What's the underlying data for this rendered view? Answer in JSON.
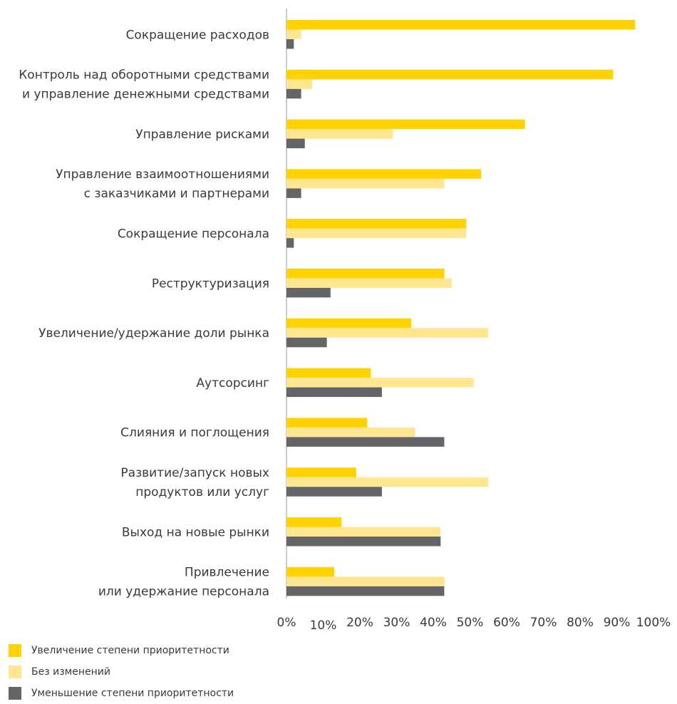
{
  "chart_data": {
    "type": "bar",
    "orientation": "horizontal",
    "categories": [
      [
        "Сокращение расходов"
      ],
      [
        "Контроль над оборотными средствами",
        "и управление денежными средствами"
      ],
      [
        "Управление рисками"
      ],
      [
        "Управление взаимоотношениями",
        "с заказчиками и партнерами"
      ],
      [
        "Сокращение персонала"
      ],
      [
        "Реструктуризация"
      ],
      [
        "Увеличение/удержание доли рынка"
      ],
      [
        "Аутсорсинг"
      ],
      [
        "Слияния и поглощения"
      ],
      [
        "Развитие/запуск новых",
        "продуктов или услуг"
      ],
      [
        "Выход на новые рынки"
      ],
      [
        "Привлечение",
        "или удержание персонала"
      ]
    ],
    "series": [
      {
        "name": "Увеличение степени приоритетности",
        "color": "#FFD200",
        "values": [
          95,
          89,
          65,
          53,
          49,
          43,
          34,
          23,
          22,
          19,
          15,
          13
        ]
      },
      {
        "name": "Без изменений",
        "color": "#FFE690",
        "values": [
          4,
          7,
          29,
          43,
          49,
          45,
          55,
          51,
          35,
          55,
          42,
          43
        ]
      },
      {
        "name": "Уменьшение степени приоритетности",
        "color": "#646469",
        "values": [
          2,
          4,
          5,
          4,
          2,
          12,
          11,
          26,
          43,
          26,
          42,
          43
        ]
      }
    ],
    "xlim": [
      0,
      100
    ],
    "xticks": [
      "0%",
      "10%",
      "20%",
      "30%",
      "40%",
      "50%",
      "60%",
      "70%",
      "80%",
      "90%",
      "100%"
    ],
    "legend_position": "bottom-left",
    "grid": false
  }
}
